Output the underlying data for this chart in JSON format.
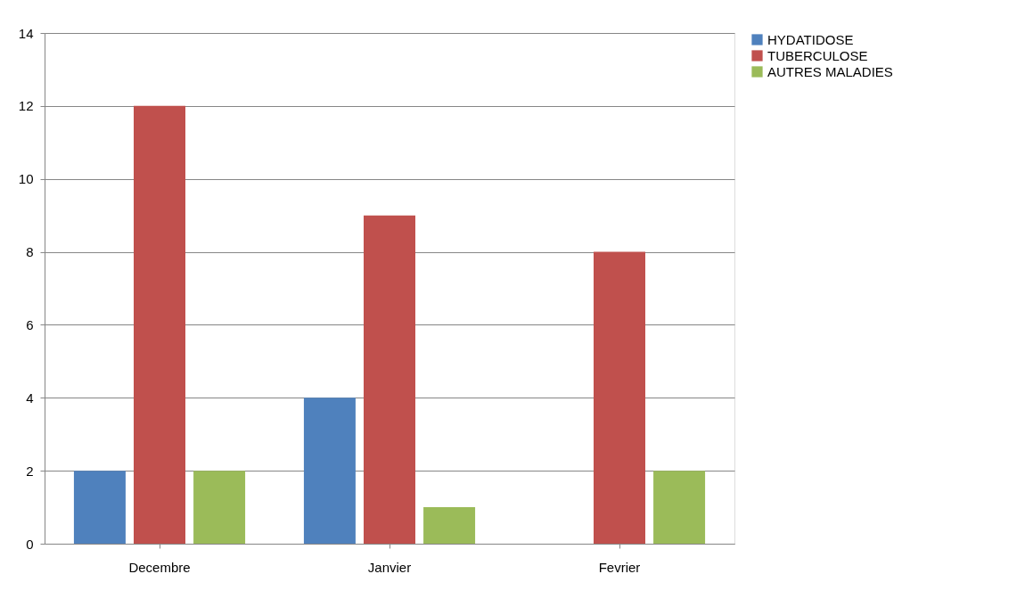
{
  "chart_data": {
    "type": "bar",
    "categories": [
      "Decembre",
      "Janvier",
      "Fevrier"
    ],
    "series": [
      {
        "name": "HYDATIDOSE",
        "color": "#4f81bd",
        "values": [
          2,
          4,
          0
        ]
      },
      {
        "name": "TUBERCULOSE",
        "color": "#c0504d",
        "values": [
          12,
          9,
          8
        ]
      },
      {
        "name": "AUTRES MALADIES",
        "color": "#9bbb59",
        "values": [
          2,
          1,
          2
        ]
      }
    ],
    "ylim": [
      0,
      14
    ],
    "yticks": [
      0,
      2,
      4,
      6,
      8,
      10,
      12,
      14
    ],
    "grid": "y",
    "legend": "right"
  }
}
